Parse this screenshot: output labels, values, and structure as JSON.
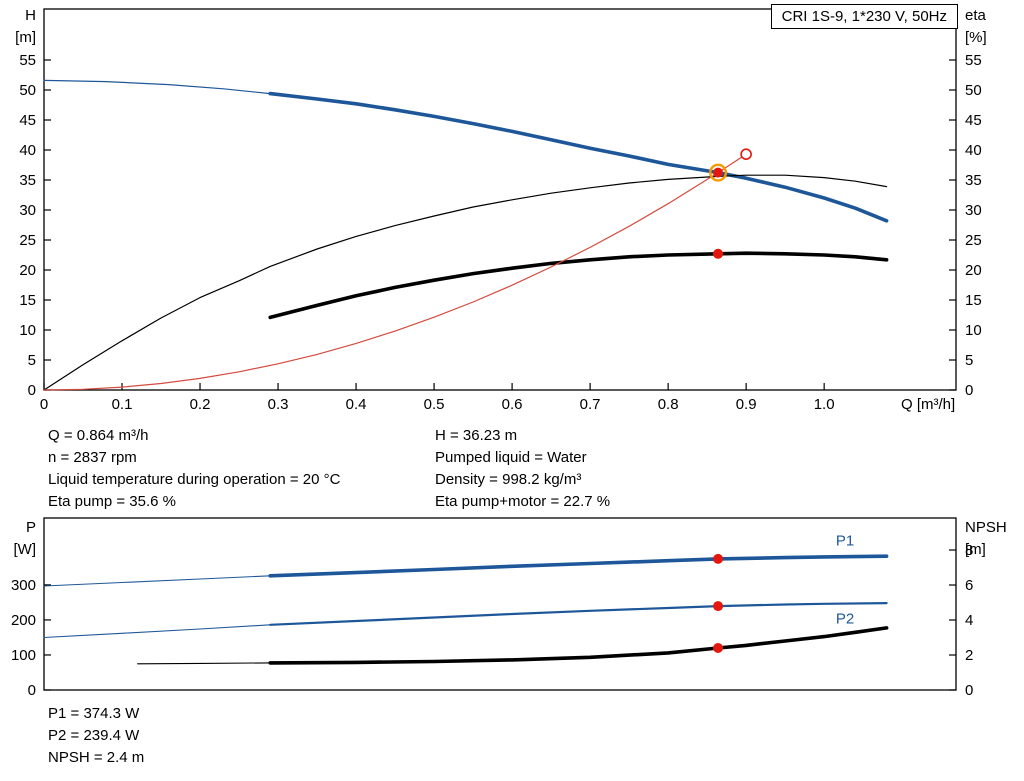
{
  "title_box": "CRI 1S-9, 1*230 V, 50Hz",
  "colors": {
    "curve_blue": "#1e5799",
    "curve_black": "#000000",
    "curve_red": "#d44a3e",
    "duty_red": "#e3170d",
    "halo_orange": "#f59b00"
  },
  "info_panel": {
    "left": [
      "Q = 0.864 m³/h",
      "n = 2837 rpm",
      "Liquid temperature during operation = 20 °C",
      "Eta pump = 35.6 %"
    ],
    "right": [
      "H = 36.23 m",
      "Pumped liquid = Water",
      "Density = 998.2 kg/m³",
      "Eta pump+motor = 22.7 %"
    ]
  },
  "results_panel": [
    "P1 = 374.3 W",
    "P2 = 239.4 W",
    "NPSH = 2.4 m"
  ],
  "chart_data": [
    {
      "type": "line",
      "name": "qh-eta-chart",
      "x_axis": {
        "label": "Q [m³/h]",
        "min": 0,
        "max": 1.169,
        "ticks": [
          0,
          0.1,
          0.2,
          0.3,
          0.4,
          0.5,
          0.6,
          0.7,
          0.8,
          0.9,
          1.0
        ],
        "tick_labels": [
          "0",
          "0.1",
          "0.2",
          "0.3",
          "0.4",
          "0.5",
          "0.6",
          "0.7",
          "0.8",
          "0.9",
          "1.0"
        ]
      },
      "y_left": {
        "header": [
          "H",
          "[m]"
        ],
        "min": 0,
        "max": 63.5,
        "ticks": [
          0,
          5,
          10,
          15,
          20,
          25,
          30,
          35,
          40,
          45,
          50,
          55
        ]
      },
      "y_right": {
        "header": [
          "eta",
          "[%]"
        ],
        "min": 0,
        "max": 63.5,
        "ticks": [
          0,
          5,
          10,
          15,
          20,
          25,
          30,
          35,
          40,
          45,
          50,
          55
        ]
      },
      "grid": false,
      "series": [
        {
          "name": "head-curve-thin",
          "axis": "left",
          "color": "curve_blue",
          "width": 1.2,
          "points": [
            [
              0,
              51.6
            ],
            [
              0.08,
              51.4
            ],
            [
              0.16,
              50.9
            ],
            [
              0.23,
              50.2
            ],
            [
              0.29,
              49.4
            ]
          ]
        },
        {
          "name": "head-curve",
          "axis": "left",
          "color": "curve_blue",
          "width": 3.6,
          "points": [
            [
              0.29,
              49.4
            ],
            [
              0.35,
              48.5
            ],
            [
              0.4,
              47.7
            ],
            [
              0.45,
              46.7
            ],
            [
              0.5,
              45.6
            ],
            [
              0.55,
              44.4
            ],
            [
              0.6,
              43.1
            ],
            [
              0.65,
              41.7
            ],
            [
              0.7,
              40.3
            ],
            [
              0.75,
              39.0
            ],
            [
              0.8,
              37.6
            ],
            [
              0.864,
              36.23
            ],
            [
              0.9,
              35.3
            ],
            [
              0.95,
              33.8
            ],
            [
              1.0,
              32.0
            ],
            [
              1.04,
              30.3
            ],
            [
              1.08,
              28.2
            ]
          ]
        },
        {
          "name": "eta-pump-curve",
          "axis": "right",
          "color": "curve_black",
          "width": 1.2,
          "points": [
            [
              0,
              0
            ],
            [
              0.05,
              4.2
            ],
            [
              0.1,
              8.2
            ],
            [
              0.15,
              12.0
            ],
            [
              0.2,
              15.4
            ],
            [
              0.25,
              18.2
            ],
            [
              0.29,
              20.6
            ],
            [
              0.35,
              23.5
            ],
            [
              0.4,
              25.6
            ],
            [
              0.45,
              27.4
            ],
            [
              0.5,
              29.0
            ],
            [
              0.55,
              30.5
            ],
            [
              0.6,
              31.7
            ],
            [
              0.65,
              32.8
            ],
            [
              0.7,
              33.7
            ],
            [
              0.75,
              34.5
            ],
            [
              0.8,
              35.1
            ],
            [
              0.864,
              35.6
            ],
            [
              0.9,
              35.8
            ],
            [
              0.95,
              35.8
            ],
            [
              1.0,
              35.4
            ],
            [
              1.04,
              34.8
            ],
            [
              1.08,
              33.9
            ]
          ]
        },
        {
          "name": "eta-pump-motor-curve",
          "axis": "right",
          "color": "curve_black",
          "width": 3.6,
          "points": [
            [
              0.29,
              12.1
            ],
            [
              0.35,
              14.1
            ],
            [
              0.4,
              15.7
            ],
            [
              0.45,
              17.1
            ],
            [
              0.5,
              18.3
            ],
            [
              0.55,
              19.4
            ],
            [
              0.6,
              20.3
            ],
            [
              0.65,
              21.1
            ],
            [
              0.7,
              21.7
            ],
            [
              0.75,
              22.2
            ],
            [
              0.8,
              22.5
            ],
            [
              0.864,
              22.7
            ],
            [
              0.9,
              22.8
            ],
            [
              0.95,
              22.7
            ],
            [
              1.0,
              22.5
            ],
            [
              1.04,
              22.2
            ],
            [
              1.08,
              21.7
            ]
          ]
        },
        {
          "name": "system-curve",
          "axis": "left",
          "color": "curve_red",
          "width": 1.2,
          "points": [
            [
              0,
              0
            ],
            [
              0.05,
              0.12
            ],
            [
              0.1,
              0.49
            ],
            [
              0.15,
              1.09
            ],
            [
              0.2,
              1.94
            ],
            [
              0.25,
              3.03
            ],
            [
              0.3,
              4.37
            ],
            [
              0.35,
              5.94
            ],
            [
              0.4,
              7.76
            ],
            [
              0.45,
              9.82
            ],
            [
              0.5,
              12.13
            ],
            [
              0.55,
              14.67
            ],
            [
              0.6,
              17.46
            ],
            [
              0.65,
              20.5
            ],
            [
              0.7,
              23.77
            ],
            [
              0.75,
              27.29
            ],
            [
              0.8,
              31.05
            ],
            [
              0.864,
              36.23
            ],
            [
              0.9,
              39.3
            ]
          ]
        }
      ],
      "markers": [
        {
          "name": "duty-point-head",
          "type": "halo-dot",
          "axis": "left",
          "x": 0.864,
          "y": 36.23
        },
        {
          "name": "duty-point-eta-motor",
          "type": "dot",
          "axis": "right",
          "x": 0.864,
          "y": 22.7
        },
        {
          "name": "system-curve-end",
          "type": "open",
          "axis": "left",
          "x": 0.9,
          "y": 39.3
        }
      ],
      "annotations": []
    },
    {
      "type": "line",
      "name": "power-npsh-chart",
      "x_axis": {
        "label": "",
        "min": 0,
        "max": 1.169,
        "ticks": [],
        "tick_labels": []
      },
      "y_left": {
        "header": [
          "P",
          "[W]"
        ],
        "min": 0,
        "max": 491,
        "ticks": [
          0,
          100,
          200,
          300
        ]
      },
      "y_right": {
        "header": [
          "NPSH",
          "[m]"
        ],
        "min": 0,
        "max": 9.83,
        "ticks": [
          0,
          2,
          4,
          6,
          8
        ]
      },
      "grid": false,
      "series": [
        {
          "name": "p1-curve-thin",
          "axis": "left",
          "color": "curve_blue",
          "width": 1.1,
          "points": [
            [
              0,
              297
            ],
            [
              0.1,
              307
            ],
            [
              0.2,
              317
            ],
            [
              0.29,
              326
            ]
          ]
        },
        {
          "name": "p1-curve",
          "axis": "left",
          "color": "curve_blue",
          "width": 3.6,
          "points": [
            [
              0.29,
              326
            ],
            [
              0.4,
              335
            ],
            [
              0.5,
              344
            ],
            [
              0.6,
              353
            ],
            [
              0.7,
              361
            ],
            [
              0.8,
              369
            ],
            [
              0.864,
              374.3
            ],
            [
              0.95,
              378
            ],
            [
              1.0,
              380
            ],
            [
              1.08,
              382
            ]
          ]
        },
        {
          "name": "p2-curve-thin",
          "axis": "left",
          "color": "curve_blue",
          "width": 1.1,
          "points": [
            [
              0,
              150
            ],
            [
              0.1,
              162
            ],
            [
              0.2,
              174
            ],
            [
              0.29,
              186
            ]
          ]
        },
        {
          "name": "p2-curve",
          "axis": "left",
          "color": "curve_blue",
          "width": 2.2,
          "points": [
            [
              0.29,
              186
            ],
            [
              0.4,
              197
            ],
            [
              0.5,
              207
            ],
            [
              0.6,
              217
            ],
            [
              0.7,
              226
            ],
            [
              0.8,
              234
            ],
            [
              0.864,
              239.4
            ],
            [
              0.95,
              244
            ],
            [
              1.0,
              246
            ],
            [
              1.08,
              248
            ]
          ]
        },
        {
          "name": "npsh-curve-thin",
          "axis": "right",
          "color": "curve_black",
          "width": 1.1,
          "points": [
            [
              0.12,
              1.5
            ],
            [
              0.2,
              1.52
            ],
            [
              0.29,
              1.55
            ]
          ]
        },
        {
          "name": "npsh-curve",
          "axis": "right",
          "color": "curve_black",
          "width": 3.6,
          "points": [
            [
              0.29,
              1.55
            ],
            [
              0.4,
              1.58
            ],
            [
              0.5,
              1.63
            ],
            [
              0.6,
              1.72
            ],
            [
              0.7,
              1.87
            ],
            [
              0.8,
              2.12
            ],
            [
              0.864,
              2.4
            ],
            [
              0.9,
              2.55
            ],
            [
              0.95,
              2.8
            ],
            [
              1.0,
              3.05
            ],
            [
              1.04,
              3.3
            ],
            [
              1.08,
              3.55
            ]
          ]
        }
      ],
      "markers": [
        {
          "name": "duty-point-p1",
          "type": "dot",
          "axis": "left",
          "x": 0.864,
          "y": 374.3
        },
        {
          "name": "duty-point-p2",
          "type": "dot",
          "axis": "left",
          "x": 0.864,
          "y": 239.4
        },
        {
          "name": "duty-point-npsh",
          "type": "dot",
          "axis": "right",
          "x": 0.864,
          "y": 2.4
        }
      ],
      "annotations": [
        {
          "name": "p1-curve-label",
          "text": "P1",
          "axis": "left",
          "x": 1.015,
          "y": 412,
          "color": "curve_blue"
        },
        {
          "name": "p2-curve-label",
          "text": "P2",
          "axis": "left",
          "x": 1.015,
          "y": 190,
          "color": "curve_blue"
        }
      ]
    }
  ]
}
